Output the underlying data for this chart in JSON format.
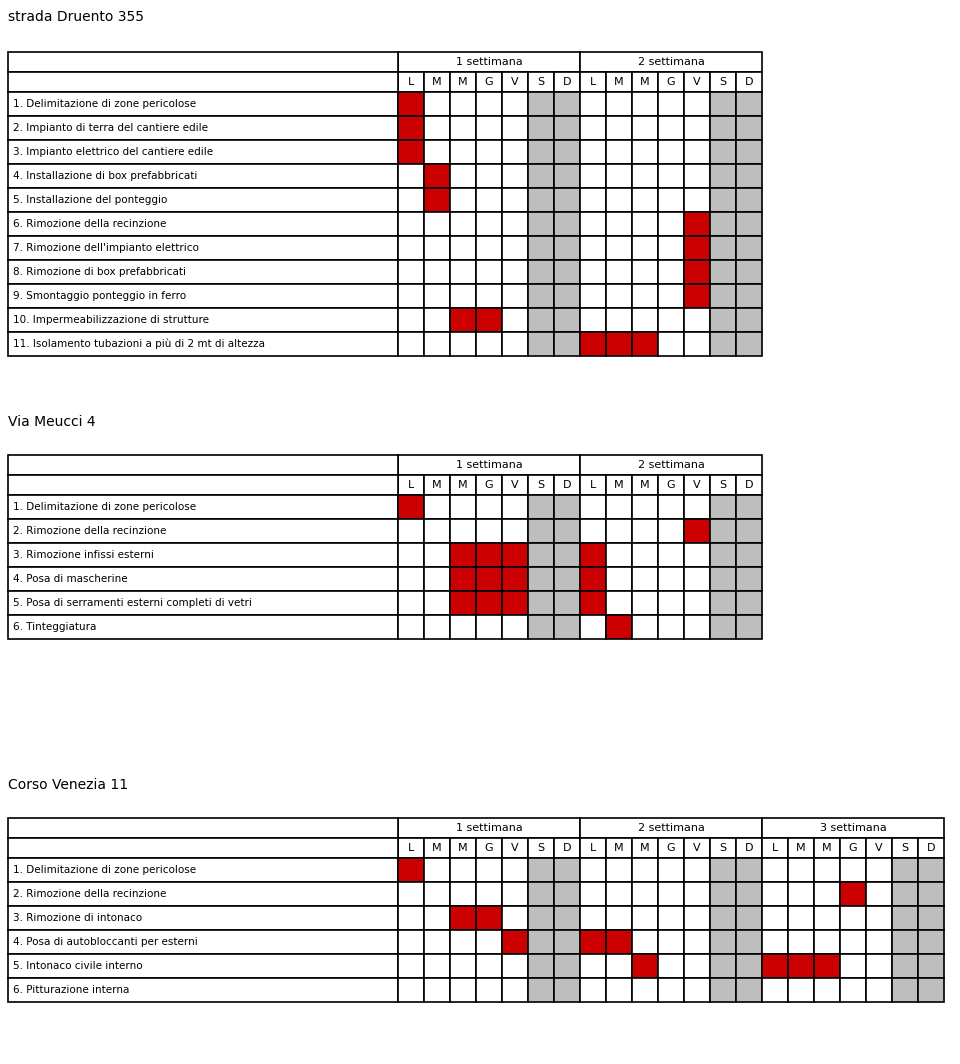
{
  "title1": "strada Druento 355",
  "title2": "Via Meucci 4",
  "title3": "Corso Venezia 11",
  "week_headers2": [
    "1 settimana",
    "2 settimana"
  ],
  "week_headers3": [
    "1 settimana",
    "2 settimana",
    "3 settimana"
  ],
  "day_labels2": [
    "L",
    "M",
    "M",
    "G",
    "V",
    "S",
    "D",
    "L",
    "M",
    "M",
    "G",
    "V",
    "S",
    "D"
  ],
  "day_labels3": [
    "L",
    "M",
    "M",
    "G",
    "V",
    "S",
    "D",
    "L",
    "M",
    "M",
    "G",
    "V",
    "S",
    "D",
    "L",
    "M",
    "M",
    "G",
    "V",
    "S",
    "D"
  ],
  "table1_rows": [
    "1. Delimitazione di zone pericolose",
    "2. Impianto di terra del cantiere edile",
    "3. Impianto elettrico del cantiere edile",
    "4. Installazione di box prefabbricati",
    "5. Installazione del ponteggio",
    "6. Rimozione della recinzione",
    "7. Rimozione dell'impianto elettrico",
    "8. Rimozione di box prefabbricati",
    "9. Smontaggio ponteggio in ferro",
    "10. Impermeabilizzazione di strutture",
    "11. Isolamento tubazioni a più di 2 mt di altezza"
  ],
  "table1_red": [
    [
      0
    ],
    [
      0
    ],
    [
      0
    ],
    [
      1
    ],
    [
      1
    ],
    [
      11
    ],
    [
      11
    ],
    [
      11
    ],
    [
      11
    ],
    [
      2,
      3
    ],
    [
      7,
      8,
      9
    ]
  ],
  "table1_gray": [
    5,
    6,
    12,
    13
  ],
  "table2_rows": [
    "1. Delimitazione di zone pericolose",
    "2. Rimozione della recinzione",
    "3. Rimozione infissi esterni",
    "4. Posa di mascherine",
    "5. Posa di serramenti esterni completi di vetri",
    "6. Tinteggiatura"
  ],
  "table2_red": [
    [
      0
    ],
    [
      11
    ],
    [
      2,
      3,
      4,
      7
    ],
    [
      2,
      3,
      4,
      7
    ],
    [
      2,
      3,
      4,
      7
    ],
    [
      8
    ]
  ],
  "table2_gray": [
    5,
    6,
    12,
    13
  ],
  "table3_rows": [
    "1. Delimitazione di zone pericolose",
    "2. Rimozione della recinzione",
    "3. Rimozione di intonaco",
    "4. Posa di autobloccanti per esterni",
    "5. Intonaco civile interno",
    "6. Pitturazione interna"
  ],
  "table3_red": [
    [
      0
    ],
    [
      17
    ],
    [
      2,
      3
    ],
    [
      4,
      7,
      8
    ],
    [
      9,
      14,
      15,
      16
    ],
    []
  ],
  "table3_gray": [
    5,
    6,
    12,
    13,
    19,
    20
  ],
  "red_color": "#CC0000",
  "gray_color": "#BEBEBE",
  "white_color": "#FFFFFF",
  "border_color": "#000000",
  "bg_color": "#FFFFFF",
  "text_color": "#000000"
}
